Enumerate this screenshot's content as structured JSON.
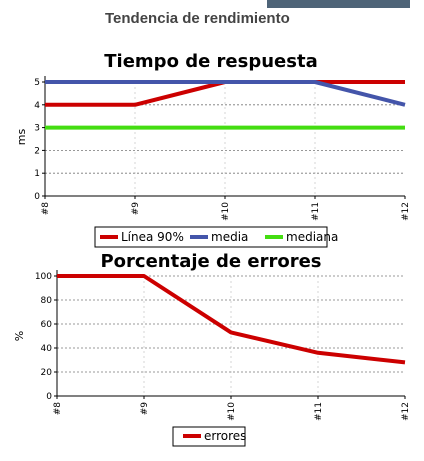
{
  "page": {
    "title": "Tendencia de rendimiento"
  },
  "colors": {
    "header_bar": "#4e6478",
    "line90": "#cc0000",
    "media": "#4455aa",
    "mediana": "#44dd11",
    "errores": "#cc0000"
  },
  "chart_data": [
    {
      "type": "line",
      "title": "Tiempo de respuesta",
      "xlabel": "",
      "ylabel": "ms",
      "categories": [
        "#8",
        "#9",
        "#10",
        "#11",
        "#12"
      ],
      "ylim": [
        0,
        5
      ],
      "yticks": [
        "0",
        "1",
        "2",
        "3",
        "4",
        "5"
      ],
      "grid": true,
      "legend_position": "bottom",
      "series": [
        {
          "name": "Línea 90%",
          "values": [
            4,
            4,
            5,
            5,
            5
          ],
          "color": "#cc0000"
        },
        {
          "name": "media",
          "values": [
            5,
            5,
            5,
            5,
            4
          ],
          "color": "#4455aa"
        },
        {
          "name": "mediana",
          "values": [
            3,
            3,
            3,
            3,
            3
          ],
          "color": "#44dd11"
        }
      ]
    },
    {
      "type": "line",
      "title": "Porcentaje de errores",
      "xlabel": "",
      "ylabel": "%",
      "categories": [
        "#8",
        "#9",
        "#10",
        "#11",
        "#12"
      ],
      "ylim": [
        0,
        100
      ],
      "yticks": [
        "0",
        "20",
        "40",
        "60",
        "80",
        "100"
      ],
      "grid": true,
      "legend_position": "bottom",
      "series": [
        {
          "name": "errores",
          "values": [
            100,
            100,
            53,
            36,
            28
          ],
          "color": "#cc0000"
        }
      ]
    }
  ]
}
